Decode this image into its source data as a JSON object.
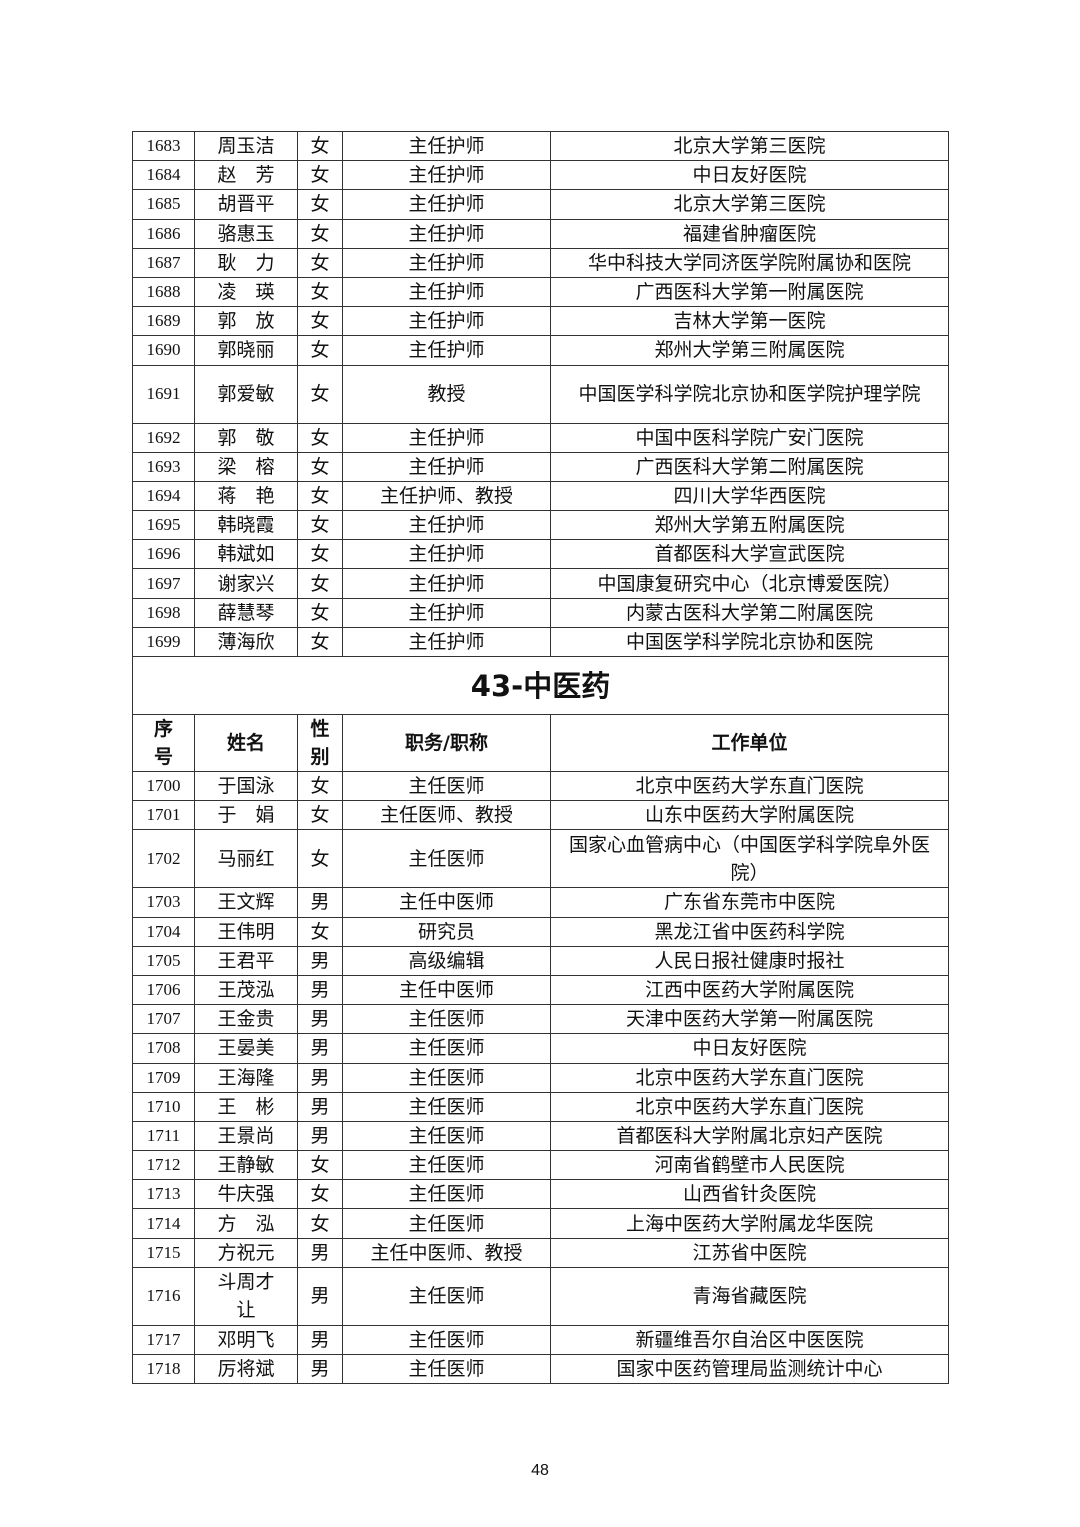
{
  "table_top_rows": [
    {
      "seq": "1683",
      "name": "周玉洁",
      "gender": "女",
      "title": "主任护师",
      "unit": "北京大学第三医院"
    },
    {
      "seq": "1684",
      "name": "赵　芳",
      "gender": "女",
      "title": "主任护师",
      "unit": "中日友好医院"
    },
    {
      "seq": "1685",
      "name": "胡晋平",
      "gender": "女",
      "title": "主任护师",
      "unit": "北京大学第三医院"
    },
    {
      "seq": "1686",
      "name": "骆惠玉",
      "gender": "女",
      "title": "主任护师",
      "unit": "福建省肿瘤医院"
    },
    {
      "seq": "1687",
      "name": "耿　力",
      "gender": "女",
      "title": "主任护师",
      "unit": "华中科技大学同济医学院附属协和医院"
    },
    {
      "seq": "1688",
      "name": "凌　瑛",
      "gender": "女",
      "title": "主任护师",
      "unit": "广西医科大学第一附属医院"
    },
    {
      "seq": "1689",
      "name": "郭　放",
      "gender": "女",
      "title": "主任护师",
      "unit": "吉林大学第一医院"
    },
    {
      "seq": "1690",
      "name": "郭晓丽",
      "gender": "女",
      "title": "主任护师",
      "unit": "郑州大学第三附属医院"
    },
    {
      "seq": "1691",
      "name": "郭爱敏",
      "gender": "女",
      "title": "教授",
      "unit": "中国医学科学院北京协和医学院护理学院",
      "tall": true
    },
    {
      "seq": "1692",
      "name": "郭　敬",
      "gender": "女",
      "title": "主任护师",
      "unit": "中国中医科学院广安门医院"
    },
    {
      "seq": "1693",
      "name": "梁　榕",
      "gender": "女",
      "title": "主任护师",
      "unit": "广西医科大学第二附属医院"
    },
    {
      "seq": "1694",
      "name": "蒋　艳",
      "gender": "女",
      "title": "主任护师、教授",
      "unit": "四川大学华西医院"
    },
    {
      "seq": "1695",
      "name": "韩晓霞",
      "gender": "女",
      "title": "主任护师",
      "unit": "郑州大学第五附属医院"
    },
    {
      "seq": "1696",
      "name": "韩斌如",
      "gender": "女",
      "title": "主任护师",
      "unit": "首都医科大学宣武医院"
    },
    {
      "seq": "1697",
      "name": "谢家兴",
      "gender": "女",
      "title": "主任护师",
      "unit": "中国康复研究中心（北京博爱医院）"
    },
    {
      "seq": "1698",
      "name": "薛慧琴",
      "gender": "女",
      "title": "主任护师",
      "unit": "内蒙古医科大学第二附属医院"
    },
    {
      "seq": "1699",
      "name": "薄海欣",
      "gender": "女",
      "title": "主任护师",
      "unit": "中国医学科学院北京协和医院"
    }
  ],
  "section": {
    "title": "43-中医药",
    "headers": {
      "seq": "序号",
      "name": "姓名",
      "gender": "性别",
      "title": "职务/职称",
      "unit": "工作单位"
    },
    "rows": [
      {
        "seq": "1700",
        "name": "于国泳",
        "gender": "女",
        "title": "主任医师",
        "unit": "北京中医药大学东直门医院"
      },
      {
        "seq": "1701",
        "name": "于　娟",
        "gender": "女",
        "title": "主任医师、教授",
        "unit": "山东中医药大学附属医院"
      },
      {
        "seq": "1702",
        "name": "马丽红",
        "gender": "女",
        "title": "主任医师",
        "unit": "国家心血管病中心（中国医学科学院阜外医院）",
        "tall": true
      },
      {
        "seq": "1703",
        "name": "王文辉",
        "gender": "男",
        "title": "主任中医师",
        "unit": "广东省东莞市中医院"
      },
      {
        "seq": "1704",
        "name": "王伟明",
        "gender": "女",
        "title": "研究员",
        "unit": "黑龙江省中医药科学院"
      },
      {
        "seq": "1705",
        "name": "王君平",
        "gender": "男",
        "title": "高级编辑",
        "unit": "人民日报社健康时报社"
      },
      {
        "seq": "1706",
        "name": "王茂泓",
        "gender": "男",
        "title": "主任中医师",
        "unit": "江西中医药大学附属医院"
      },
      {
        "seq": "1707",
        "name": "王金贵",
        "gender": "男",
        "title": "主任医师",
        "unit": "天津中医药大学第一附属医院"
      },
      {
        "seq": "1708",
        "name": "王晏美",
        "gender": "男",
        "title": "主任医师",
        "unit": "中日友好医院"
      },
      {
        "seq": "1709",
        "name": "王海隆",
        "gender": "男",
        "title": "主任医师",
        "unit": "北京中医药大学东直门医院"
      },
      {
        "seq": "1710",
        "name": "王　彬",
        "gender": "男",
        "title": "主任医师",
        "unit": "北京中医药大学东直门医院"
      },
      {
        "seq": "1711",
        "name": "王景尚",
        "gender": "男",
        "title": "主任医师",
        "unit": "首都医科大学附属北京妇产医院"
      },
      {
        "seq": "1712",
        "name": "王静敏",
        "gender": "女",
        "title": "主任医师",
        "unit": "河南省鹤壁市人民医院"
      },
      {
        "seq": "1713",
        "name": "牛庆强",
        "gender": "女",
        "title": "主任医师",
        "unit": "山西省针灸医院"
      },
      {
        "seq": "1714",
        "name": "方　泓",
        "gender": "女",
        "title": "主任医师",
        "unit": "上海中医药大学附属龙华医院"
      },
      {
        "seq": "1715",
        "name": "方祝元",
        "gender": "男",
        "title": "主任中医师、教授",
        "unit": "江苏省中医院"
      },
      {
        "seq": "1716",
        "name": "斗周才让",
        "gender": "男",
        "title": "主任医师",
        "unit": "青海省藏医院",
        "tall": true
      },
      {
        "seq": "1717",
        "name": "邓明飞",
        "gender": "男",
        "title": "主任医师",
        "unit": "新疆维吾尔自治区中医医院"
      },
      {
        "seq": "1718",
        "name": "厉将斌",
        "gender": "男",
        "title": "主任医师",
        "unit": "国家中医药管理局监测统计中心"
      }
    ]
  },
  "page_number": "48"
}
